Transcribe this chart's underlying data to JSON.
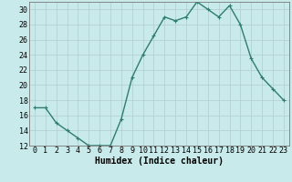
{
  "x": [
    0,
    1,
    2,
    3,
    4,
    5,
    6,
    7,
    8,
    9,
    10,
    11,
    12,
    13,
    14,
    15,
    16,
    17,
    18,
    19,
    20,
    21,
    22,
    23
  ],
  "y": [
    17,
    17,
    15,
    14,
    13,
    12,
    12,
    12,
    15.5,
    21,
    24,
    26.5,
    29,
    28.5,
    29,
    31,
    30,
    29,
    30.5,
    28,
    23.5,
    21,
    19.5,
    18
  ],
  "line_color": "#2e7d6e",
  "marker_color": "#2e7d6e",
  "bg_color": "#c8eaea",
  "grid_color": "#b0cccc",
  "xlabel": "Humidex (Indice chaleur)",
  "ylim": [
    12,
    31
  ],
  "xlim_min": -0.5,
  "xlim_max": 23.5,
  "yticks": [
    12,
    14,
    16,
    18,
    20,
    22,
    24,
    26,
    28,
    30
  ],
  "xticks": [
    0,
    1,
    2,
    3,
    4,
    5,
    6,
    7,
    8,
    9,
    10,
    11,
    12,
    13,
    14,
    15,
    16,
    17,
    18,
    19,
    20,
    21,
    22,
    23
  ],
  "xlabel_fontsize": 7,
  "tick_fontsize": 6,
  "line_width": 1.0,
  "marker_size": 2.5
}
